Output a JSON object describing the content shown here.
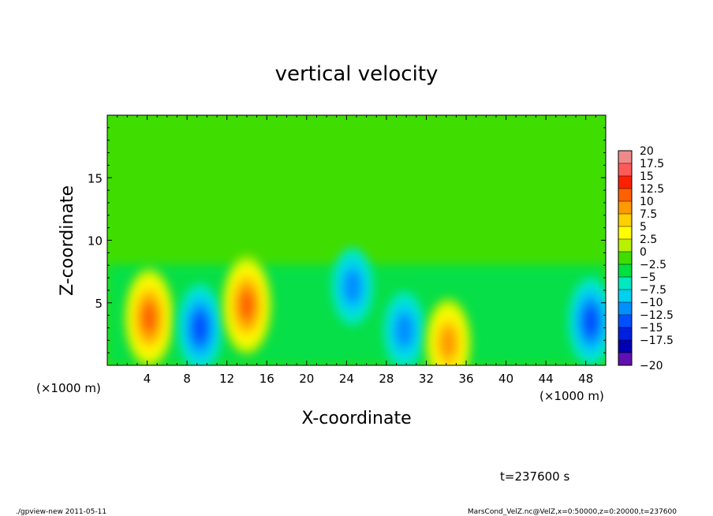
{
  "chart_data": {
    "type": "heatmap",
    "title": "vertical velocity",
    "xlabel": "X-coordinate",
    "ylabel": "Z-coordinate",
    "x_unit_label": "(×1000 m)",
    "x_unit_label_right": "(×1000 m)",
    "xlim": [
      0,
      50
    ],
    "ylim": [
      0,
      20
    ],
    "x_ticks": [
      "4",
      "8",
      "12",
      "16",
      "20",
      "24",
      "28",
      "32",
      "36",
      "40",
      "44",
      "48"
    ],
    "y_ticks": [
      "5",
      "10",
      "15"
    ],
    "colorbar": {
      "levels": [
        "20",
        "17.5",
        "15",
        "12.5",
        "10",
        "7.5",
        "5",
        "2.5",
        "0",
        "−2.5",
        "−5",
        "−7.5",
        "−10",
        "−12.5",
        "−15",
        "−17.5",
        "−20"
      ],
      "colors": [
        "#f08a8a",
        "#ff5a5a",
        "#ff2000",
        "#ff6000",
        "#ff9a00",
        "#ffd000",
        "#ffff00",
        "#b8f000",
        "#40dd00",
        "#00e040",
        "#00e8c0",
        "#00d0f0",
        "#0090ff",
        "#0050ff",
        "#0020e0",
        "#0000b0",
        "#6010b0"
      ]
    },
    "background_level": "0",
    "features": [
      {
        "x": 4.2,
        "z": 3.8,
        "sign": "positive",
        "peak": 12.5
      },
      {
        "x": 9.3,
        "z": 3.0,
        "sign": "negative",
        "peak": -10
      },
      {
        "x": 14.0,
        "z": 4.8,
        "sign": "positive",
        "peak": 12.5
      },
      {
        "x": 24.6,
        "z": 6.3,
        "sign": "negative",
        "peak": -7.5
      },
      {
        "x": 29.8,
        "z": 2.8,
        "sign": "negative",
        "peak": -7.5
      },
      {
        "x": 34.2,
        "z": 1.8,
        "sign": "positive",
        "peak": 10
      },
      {
        "x": 48.5,
        "z": 3.5,
        "sign": "negative",
        "peak": -10
      }
    ],
    "annotation": "t=237600 s"
  },
  "footer": {
    "left": "./gpview-new  2011-05-11",
    "right": "MarsCond_VelZ.nc@VelZ,x=0:50000,z=0:20000,t=237600"
  }
}
